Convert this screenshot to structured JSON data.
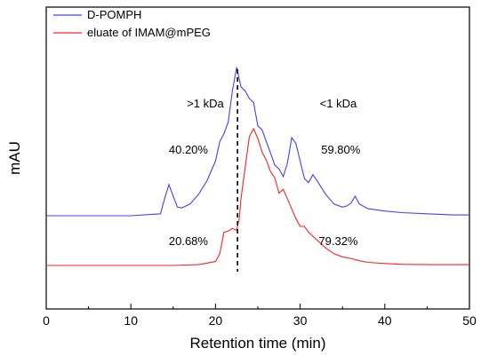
{
  "chart_data": {
    "type": "line",
    "title": "",
    "xlabel": "Retention time (min)",
    "ylabel": "mAU",
    "xlim": [
      0,
      50
    ],
    "xticks": [
      "0",
      "10",
      "20",
      "30",
      "40",
      "50"
    ],
    "grid": false,
    "legend_position": "top-left",
    "series": [
      {
        "name": "D-POMPH",
        "color": "#4040ff",
        "x": [
          0,
          10,
          13.5,
          14,
          14.5,
          15,
          15.5,
          16,
          17,
          18,
          19,
          20,
          20.5,
          21,
          21.5,
          22,
          22.5,
          23,
          23.5,
          24,
          24.5,
          25,
          25.5,
          26,
          26.5,
          27,
          27.5,
          28,
          28.5,
          29,
          29.5,
          30,
          30.5,
          31,
          31.5,
          32,
          33,
          34,
          35,
          35.5,
          36,
          36.5,
          37,
          38,
          40,
          42,
          45,
          48,
          50
        ],
        "y": [
          0,
          0,
          0.05,
          0.45,
          0.8,
          0.5,
          0.22,
          0.2,
          0.3,
          0.55,
          0.9,
          1.4,
          1.9,
          2.1,
          2.4,
          3.2,
          3.8,
          3.3,
          3.2,
          3.0,
          2.9,
          2.3,
          2.2,
          1.9,
          1.6,
          1.3,
          1.2,
          1.0,
          1.35,
          2.0,
          1.85,
          1.4,
          0.95,
          0.85,
          1.05,
          0.9,
          0.55,
          0.3,
          0.22,
          0.25,
          0.32,
          0.5,
          0.3,
          0.18,
          0.12,
          0.08,
          0.05,
          0.02,
          0.02
        ]
      },
      {
        "name": "eluate of  IMAM@mPEG",
        "color": "#ff2020",
        "x": [
          0,
          15,
          18,
          20,
          20.5,
          21,
          21.5,
          22,
          22.5,
          22.8,
          23,
          23.5,
          24,
          24.5,
          25,
          25.5,
          26,
          26.5,
          27,
          27.5,
          28,
          28.5,
          29,
          29.5,
          30,
          30.5,
          31,
          32,
          33,
          34,
          35,
          36,
          37,
          38,
          40,
          42,
          45,
          48,
          50
        ],
        "y": [
          0,
          0,
          0.02,
          0.1,
          0.3,
          0.85,
          0.88,
          0.95,
          0.9,
          1.2,
          1.7,
          2.5,
          3.3,
          3.5,
          3.25,
          2.9,
          2.7,
          2.4,
          2.25,
          1.85,
          1.95,
          1.7,
          1.45,
          1.2,
          1.0,
          1.0,
          0.85,
          0.65,
          0.45,
          0.3,
          0.22,
          0.18,
          0.12,
          0.08,
          0.05,
          0.03,
          0.02,
          0.02,
          0.02
        ]
      }
    ],
    "annotations": [
      {
        "text": ">1 kDa",
        "x": 18.8,
        "y_label": "upper"
      },
      {
        "text": "<1 kDa",
        "x": 34.5,
        "y_label": "upper"
      },
      {
        "text": "40.20%",
        "x": 16.8,
        "y_label": "upper-mid"
      },
      {
        "text": "59.80%",
        "x": 34.8,
        "y_label": "upper-mid"
      },
      {
        "text": "20.68%",
        "x": 16.8,
        "y_label": "lower"
      },
      {
        "text": "79.32%",
        "x": 34.5,
        "y_label": "lower"
      }
    ],
    "divider_x": 22.6
  }
}
